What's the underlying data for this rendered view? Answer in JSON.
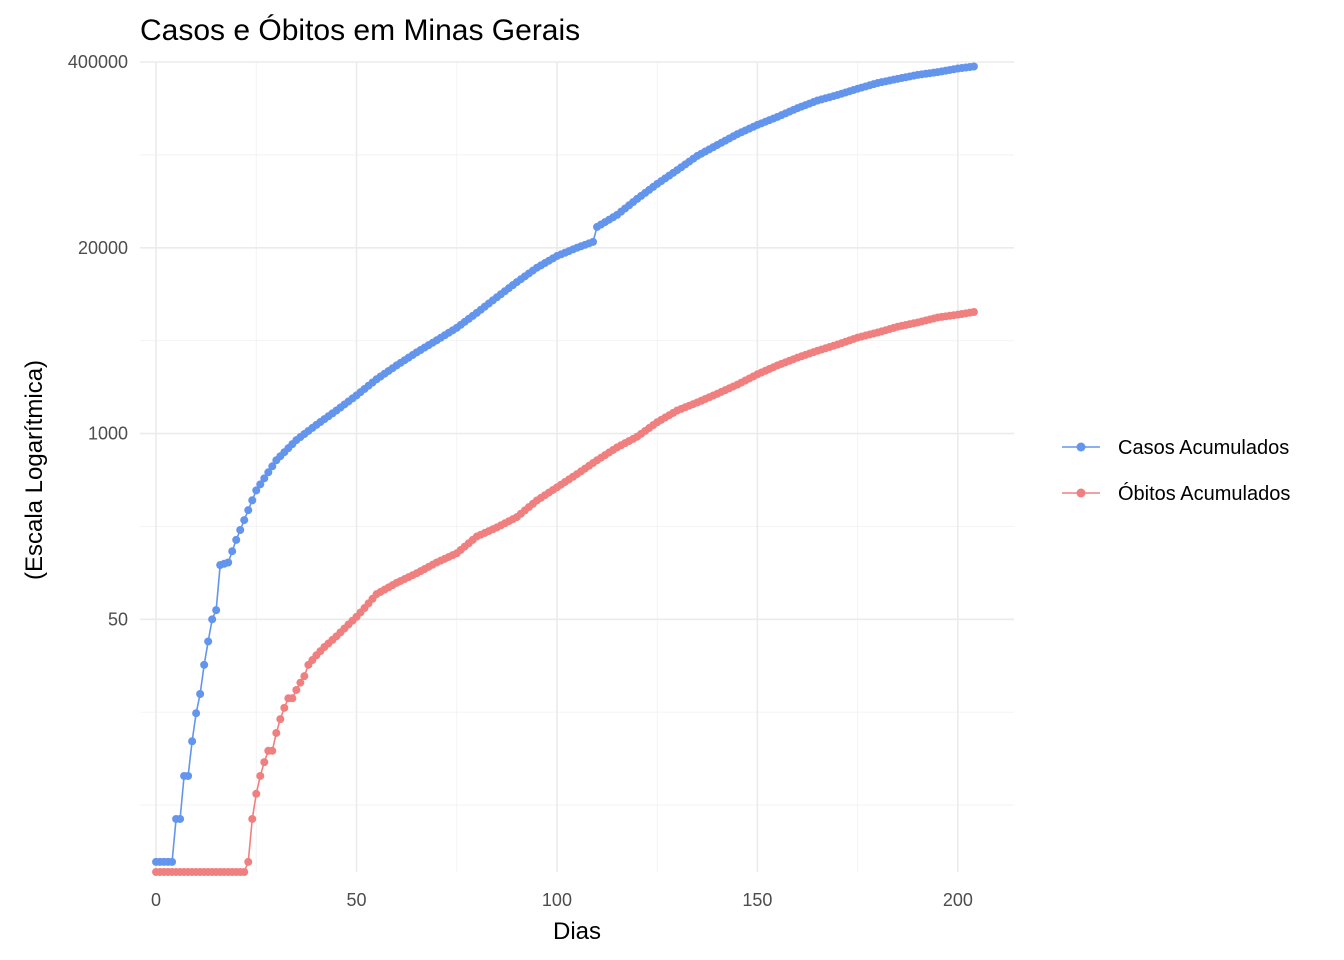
{
  "chart_data": {
    "type": "line",
    "title": "Casos e Óbitos em Minas Gerais",
    "xlabel": "Dias",
    "ylabel": "(Escala Logarítmica)",
    "y_scale": "log",
    "xlim": [
      -4,
      214
    ],
    "ylim": [
      0.85,
      400000
    ],
    "x_ticks": [
      0,
      50,
      100,
      150,
      200
    ],
    "x_tick_labels": [
      "0",
      "50",
      "100",
      "150",
      "200"
    ],
    "y_ticks": [
      50,
      1000,
      20000,
      400000
    ],
    "y_tick_labels": [
      "50",
      "1000",
      "20000",
      "400000"
    ],
    "grid": true,
    "legend_position": "right",
    "markers": true,
    "series": [
      {
        "name": "Casos Acumulados",
        "color": "#6495ED",
        "x": [
          0,
          4,
          5,
          6,
          7,
          8,
          9,
          10,
          11,
          12,
          13,
          14,
          15,
          16,
          18,
          20,
          25,
          30,
          35,
          40,
          45,
          50,
          55,
          60,
          65,
          70,
          75,
          80,
          85,
          90,
          95,
          100,
          105,
          109,
          110,
          115,
          120,
          125,
          130,
          135,
          140,
          145,
          150,
          155,
          160,
          165,
          170,
          175,
          180,
          185,
          190,
          195,
          200,
          204
        ],
        "y": [
          1,
          1,
          2,
          2,
          4,
          4,
          7,
          11,
          15,
          24,
          35,
          50,
          58,
          120,
          125,
          180,
          400,
          650,
          900,
          1150,
          1450,
          1850,
          2400,
          3000,
          3700,
          4500,
          5500,
          7000,
          9000,
          11500,
          14500,
          17500,
          20000,
          22000,
          28000,
          34000,
          44000,
          56000,
          70000,
          88000,
          105000,
          125000,
          145000,
          165000,
          190000,
          215000,
          235000,
          260000,
          285000,
          305000,
          325000,
          340000,
          360000,
          372000
        ]
      },
      {
        "name": "Óbitos Acumulados",
        "color": "#F08080",
        "x": [
          0,
          22,
          23,
          24,
          25,
          26,
          27,
          28,
          29,
          30,
          31,
          32,
          33,
          34,
          35,
          36,
          37,
          38,
          40,
          42,
          45,
          48,
          50,
          52,
          55,
          60,
          65,
          70,
          75,
          80,
          85,
          90,
          95,
          100,
          105,
          110,
          115,
          120,
          125,
          130,
          135,
          140,
          145,
          150,
          155,
          160,
          165,
          170,
          175,
          180,
          185,
          190,
          195,
          200,
          204
        ],
        "y": [
          0.85,
          0.85,
          1,
          2,
          3,
          4,
          5,
          6,
          6,
          8,
          10,
          12,
          14,
          14,
          16,
          18,
          20,
          24,
          28,
          32,
          38,
          46,
          52,
          60,
          75,
          90,
          105,
          125,
          145,
          190,
          220,
          260,
          340,
          420,
          520,
          650,
          800,
          950,
          1200,
          1450,
          1650,
          1900,
          2200,
          2600,
          3000,
          3400,
          3800,
          4200,
          4700,
          5100,
          5600,
          6000,
          6500,
          6800,
          7100
        ]
      }
    ]
  }
}
